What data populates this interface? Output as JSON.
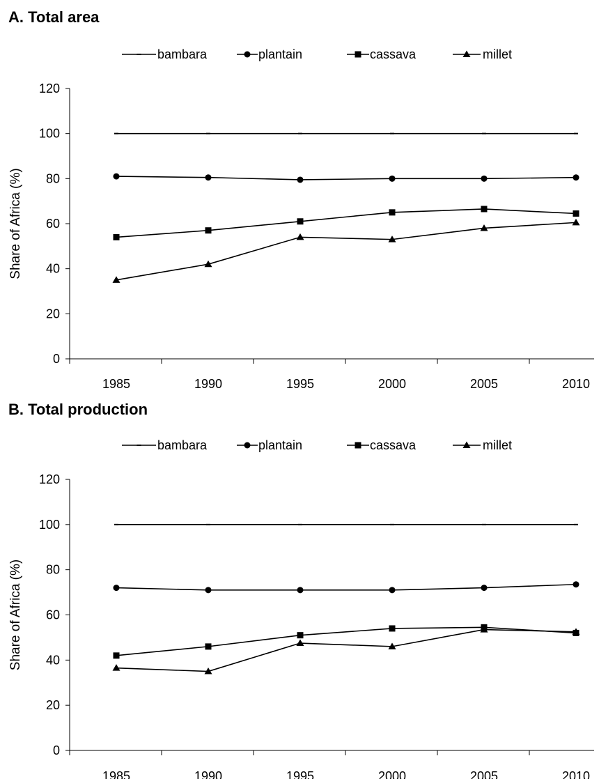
{
  "chart_data": [
    {
      "type": "line",
      "title": "A. Total area",
      "ylabel": "Share of Africa (%)",
      "xlabel": "",
      "ylim": [
        0,
        120
      ],
      "yticks": [
        0,
        20,
        40,
        60,
        80,
        100,
        120
      ],
      "x": [
        "1985",
        "1990",
        "1995",
        "2000",
        "2005",
        "2010"
      ],
      "legend_position": "top",
      "grid": false,
      "series": [
        {
          "name": "bambara",
          "marker": "dash",
          "values": [
            100,
            100,
            100,
            100,
            100,
            100
          ]
        },
        {
          "name": "plantain",
          "marker": "circle",
          "values": [
            81,
            80.5,
            79.5,
            80,
            80,
            80.5
          ]
        },
        {
          "name": "cassava",
          "marker": "square",
          "values": [
            54,
            57,
            61,
            65,
            66.5,
            64.5
          ]
        },
        {
          "name": "millet",
          "marker": "triangle",
          "values": [
            35,
            42,
            54,
            53,
            58,
            60.5
          ]
        }
      ]
    },
    {
      "type": "line",
      "title": "B. Total production",
      "ylabel": "Share of Africa (%)",
      "xlabel": "",
      "ylim": [
        0,
        120
      ],
      "yticks": [
        0,
        20,
        40,
        60,
        80,
        100,
        120
      ],
      "x": [
        "1985",
        "1990",
        "1995",
        "2000",
        "2005",
        "2010"
      ],
      "legend_position": "top",
      "grid": false,
      "series": [
        {
          "name": "bambara",
          "marker": "dash",
          "values": [
            100,
            100,
            100,
            100,
            100,
            100
          ]
        },
        {
          "name": "plantain",
          "marker": "circle",
          "values": [
            72,
            71,
            71,
            71,
            72,
            73.5
          ]
        },
        {
          "name": "cassava",
          "marker": "square",
          "values": [
            42,
            46,
            51,
            54,
            54.5,
            52
          ]
        },
        {
          "name": "millet",
          "marker": "triangle",
          "values": [
            36.5,
            35,
            47.5,
            46,
            53.5,
            52.5
          ]
        }
      ]
    }
  ]
}
